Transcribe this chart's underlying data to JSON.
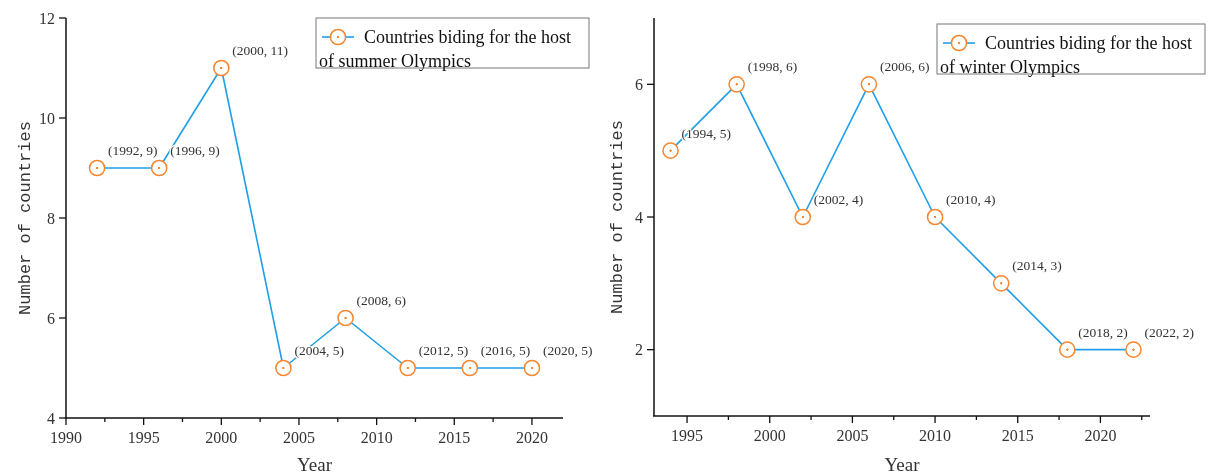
{
  "chart_data": [
    {
      "type": "line",
      "xlabel": "Year",
      "ylabel": "Number of countries",
      "x": [
        1992,
        1996,
        2000,
        2004,
        2008,
        2012,
        2016,
        2020
      ],
      "series": [
        {
          "name": "Countries biding for the host of summer Olympics",
          "color": "#1e9fe8",
          "colors": [
            "#f7862f",
            "#f7862f",
            "#f7862f",
            "#f7862f",
            "#f7862f",
            "#f7862f",
            "#f7862f",
            "#f7862f"
          ],
          "values": [
            9,
            9,
            11,
            5,
            6,
            5,
            5,
            5
          ],
          "value_labels": [
            "(1992, 9)",
            "(1996, 9)",
            "(2000, 11)",
            "(2004, 5)",
            "(2008, 6)",
            "(2012, 5)",
            "(2016, 5)",
            "(2020, 5)"
          ]
        }
      ],
      "xlim": [
        1990,
        2022
      ],
      "ylim": [
        4,
        12
      ],
      "xticks": [
        1990,
        {
          "value": 1992.5,
          "label": null
        },
        1995,
        {
          "value": 1997.5,
          "label": null
        },
        2000,
        {
          "value": 2002.5,
          "label": null
        },
        2005,
        {
          "value": 2007.5,
          "label": null
        },
        2010,
        {
          "value": 2012.5,
          "label": null
        },
        2015,
        {
          "value": 2017.5,
          "label": null
        },
        2020
      ],
      "yticks": [
        4,
        6,
        8,
        10,
        12
      ],
      "marker": "circle",
      "legend": "top right"
    },
    {
      "type": "line",
      "xlabel": "Year",
      "ylabel": "Number of countries",
      "x": [
        1994,
        1998,
        2002,
        2006,
        2010,
        2014,
        2018,
        2022
      ],
      "series": [
        {
          "name": "Countries biding for the host of winter Olympics",
          "color": "#1e9fe8",
          "colors": [
            "#f7862f",
            "#f7862f",
            "#f7862f",
            "#f7862f",
            "#f7862f",
            "#f7862f",
            "#f7862f",
            "#f7862f"
          ],
          "values": [
            5,
            6,
            4,
            6,
            4,
            3,
            2,
            2
          ],
          "value_labels": [
            "(1994, 5)",
            "(1998, 6)",
            "(2002, 4)",
            "(2006, 6)",
            "(2010, 4)",
            "(2014, 3)",
            "(2018, 2)",
            "(2022, 2)"
          ]
        }
      ],
      "xlim": [
        1993,
        2023
      ],
      "ylim": [
        1,
        7
      ],
      "xticks": [
        1995,
        {
          "value": 1997.5,
          "label": null
        },
        2000,
        {
          "value": 2002.5,
          "label": null
        },
        2005,
        {
          "value": 2007.5,
          "label": null
        },
        2010,
        {
          "value": 2012.5,
          "label": null
        },
        2015,
        {
          "value": 2017.5,
          "label": null
        },
        2020,
        {
          "value": 2022.5,
          "label": null
        }
      ],
      "yticks": [
        2,
        4,
        6
      ],
      "marker": "circle",
      "legend": "top right"
    }
  ]
}
